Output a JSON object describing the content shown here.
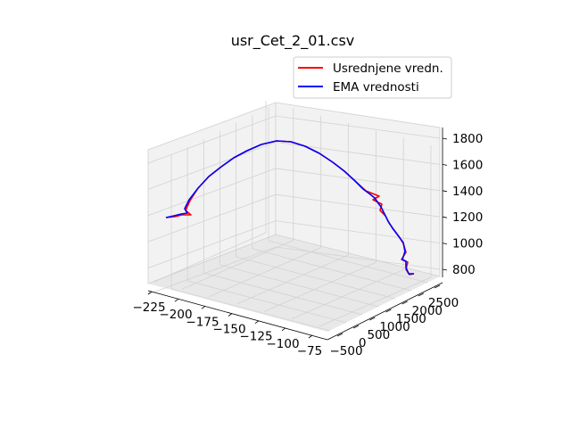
{
  "chart_data": {
    "type": "line",
    "title": "usr_Cet_2_01.csv",
    "xlabel": "",
    "ylabel": "",
    "zlabel": "",
    "x_ticks": [
      "−225",
      "−200",
      "−175",
      "−150",
      "−125",
      "−100",
      "−75"
    ],
    "y_ticks": [
      "−500",
      "0",
      "500",
      "1000",
      "1500",
      "2000",
      "2500"
    ],
    "z_ticks": [
      "800",
      "1000",
      "1200",
      "1400",
      "1600",
      "1800"
    ],
    "grid": true,
    "legend_position": "top-right",
    "series": [
      {
        "name": "Usrednjene vredn.",
        "color": "#ff0000"
      },
      {
        "name": "EMA vrednosti",
        "color": "#0000ff"
      }
    ]
  }
}
